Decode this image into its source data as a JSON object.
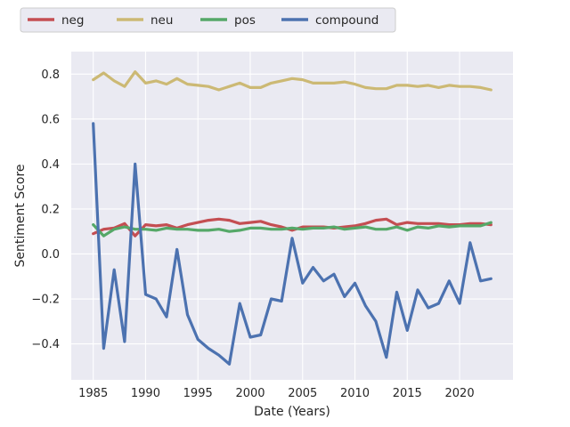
{
  "chart_data": {
    "type": "line",
    "xlabel": "Date (Years)",
    "ylabel": "Sentiment Score",
    "xlim": [
      1982.9,
      2025.1
    ],
    "ylim": [
      -0.56,
      0.9
    ],
    "x_ticks": [
      1985,
      1990,
      1995,
      2000,
      2005,
      2010,
      2015,
      2020
    ],
    "y_ticks": [
      -0.4,
      -0.2,
      0.0,
      0.2,
      0.4,
      0.6,
      0.8
    ],
    "y_tick_labels": [
      "−0.4",
      "−0.2",
      "0.0",
      "0.2",
      "0.4",
      "0.6",
      "0.8"
    ],
    "grid": true,
    "legend_position": "top-left, above plot",
    "x": [
      1985,
      1986,
      1987,
      1988,
      1989,
      1990,
      1991,
      1992,
      1993,
      1994,
      1995,
      1996,
      1997,
      1998,
      1999,
      2000,
      2001,
      2002,
      2003,
      2004,
      2005,
      2006,
      2007,
      2008,
      2009,
      2010,
      2011,
      2012,
      2013,
      2014,
      2015,
      2016,
      2017,
      2018,
      2019,
      2020,
      2021,
      2022,
      2023
    ],
    "series": [
      {
        "name": "neg",
        "color": "#c44e52",
        "values": [
          0.09,
          0.11,
          0.115,
          0.135,
          0.08,
          0.13,
          0.125,
          0.13,
          0.115,
          0.13,
          0.14,
          0.15,
          0.155,
          0.15,
          0.135,
          0.14,
          0.145,
          0.13,
          0.12,
          0.105,
          0.12,
          0.12,
          0.12,
          0.115,
          0.12,
          0.125,
          0.135,
          0.15,
          0.155,
          0.13,
          0.14,
          0.135,
          0.135,
          0.135,
          0.13,
          0.13,
          0.135,
          0.135,
          0.13
        ]
      },
      {
        "name": "neu",
        "color": "#ccb974",
        "values": [
          0.775,
          0.805,
          0.77,
          0.745,
          0.81,
          0.76,
          0.77,
          0.755,
          0.78,
          0.755,
          0.75,
          0.745,
          0.73,
          0.745,
          0.76,
          0.74,
          0.74,
          0.76,
          0.77,
          0.78,
          0.775,
          0.76,
          0.76,
          0.76,
          0.765,
          0.755,
          0.74,
          0.735,
          0.735,
          0.75,
          0.75,
          0.745,
          0.75,
          0.74,
          0.75,
          0.745,
          0.745,
          0.74,
          0.73
        ]
      },
      {
        "name": "pos",
        "color": "#55a868",
        "values": [
          0.13,
          0.08,
          0.11,
          0.12,
          0.11,
          0.11,
          0.105,
          0.115,
          0.11,
          0.11,
          0.105,
          0.105,
          0.11,
          0.1,
          0.105,
          0.115,
          0.115,
          0.11,
          0.11,
          0.115,
          0.11,
          0.115,
          0.115,
          0.12,
          0.11,
          0.115,
          0.12,
          0.11,
          0.11,
          0.12,
          0.105,
          0.12,
          0.115,
          0.125,
          0.12,
          0.125,
          0.125,
          0.125,
          0.14
        ]
      },
      {
        "name": "compound",
        "color": "#4c72b0",
        "values": [
          0.58,
          -0.42,
          -0.07,
          -0.39,
          0.4,
          -0.18,
          -0.2,
          -0.28,
          0.02,
          -0.27,
          -0.38,
          -0.42,
          -0.45,
          -0.49,
          -0.22,
          -0.37,
          -0.36,
          -0.2,
          -0.21,
          0.07,
          -0.13,
          -0.06,
          -0.12,
          -0.09,
          -0.19,
          -0.13,
          -0.23,
          -0.3,
          -0.46,
          -0.17,
          -0.34,
          -0.16,
          -0.24,
          -0.22,
          -0.12,
          -0.22,
          0.05,
          -0.12,
          -0.11
        ]
      }
    ]
  }
}
